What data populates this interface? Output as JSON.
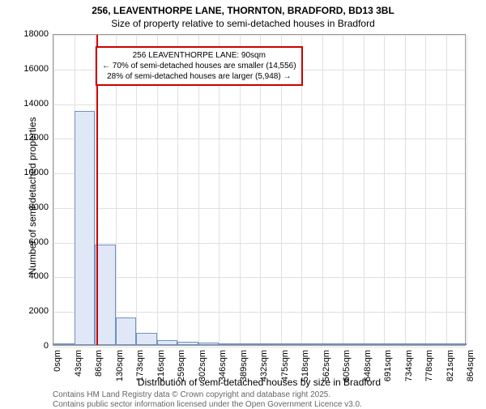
{
  "chart": {
    "type": "histogram",
    "title_main": "256, LEAVENTHORPE LANE, THORNTON, BRADFORD, BD13 3BL",
    "title_sub": "Size of property relative to semi-detached houses in Bradford",
    "title_fontsize": 12,
    "y_axis": {
      "label": "Number of semi-detached properties",
      "min": 0,
      "max": 18000,
      "step": 2000,
      "ticks": [
        0,
        2000,
        4000,
        6000,
        8000,
        10000,
        12000,
        14000,
        16000,
        18000
      ]
    },
    "x_axis": {
      "label": "Distribution of semi-detached houses by size in Bradford",
      "ticks": [
        "0sqm",
        "43sqm",
        "86sqm",
        "130sqm",
        "173sqm",
        "216sqm",
        "259sqm",
        "302sqm",
        "346sqm",
        "389sqm",
        "432sqm",
        "475sqm",
        "518sqm",
        "562sqm",
        "605sqm",
        "648sqm",
        "691sqm",
        "734sqm",
        "778sqm",
        "821sqm",
        "864sqm"
      ]
    },
    "bars": {
      "values": [
        0,
        13500,
        5800,
        1600,
        700,
        300,
        200,
        120,
        80,
        60,
        30,
        20,
        15,
        10,
        5,
        5,
        5,
        3,
        2,
        2
      ],
      "fill_color": "#e0e8f8",
      "border_color": "#7090c0"
    },
    "marker": {
      "position_sqm": 90,
      "color": "#cc0000"
    },
    "annotation": {
      "line1": "256 LEAVENTHORPE LANE: 90sqm",
      "line2": "← 70% of semi-detached houses are smaller (14,556)",
      "line3": "28% of semi-detached houses are larger (5,948) →",
      "border_color": "#cc0000",
      "background_color": "#ffffff"
    },
    "footer": {
      "line1": "Contains HM Land Registry data © Crown copyright and database right 2025.",
      "line2": "Contains public sector information licensed under the Open Government Licence v3.0."
    },
    "colors": {
      "background": "#ffffff",
      "grid": "#e0e0e0",
      "axis": "#999999",
      "text": "#000000",
      "footer_text": "#666666"
    }
  }
}
